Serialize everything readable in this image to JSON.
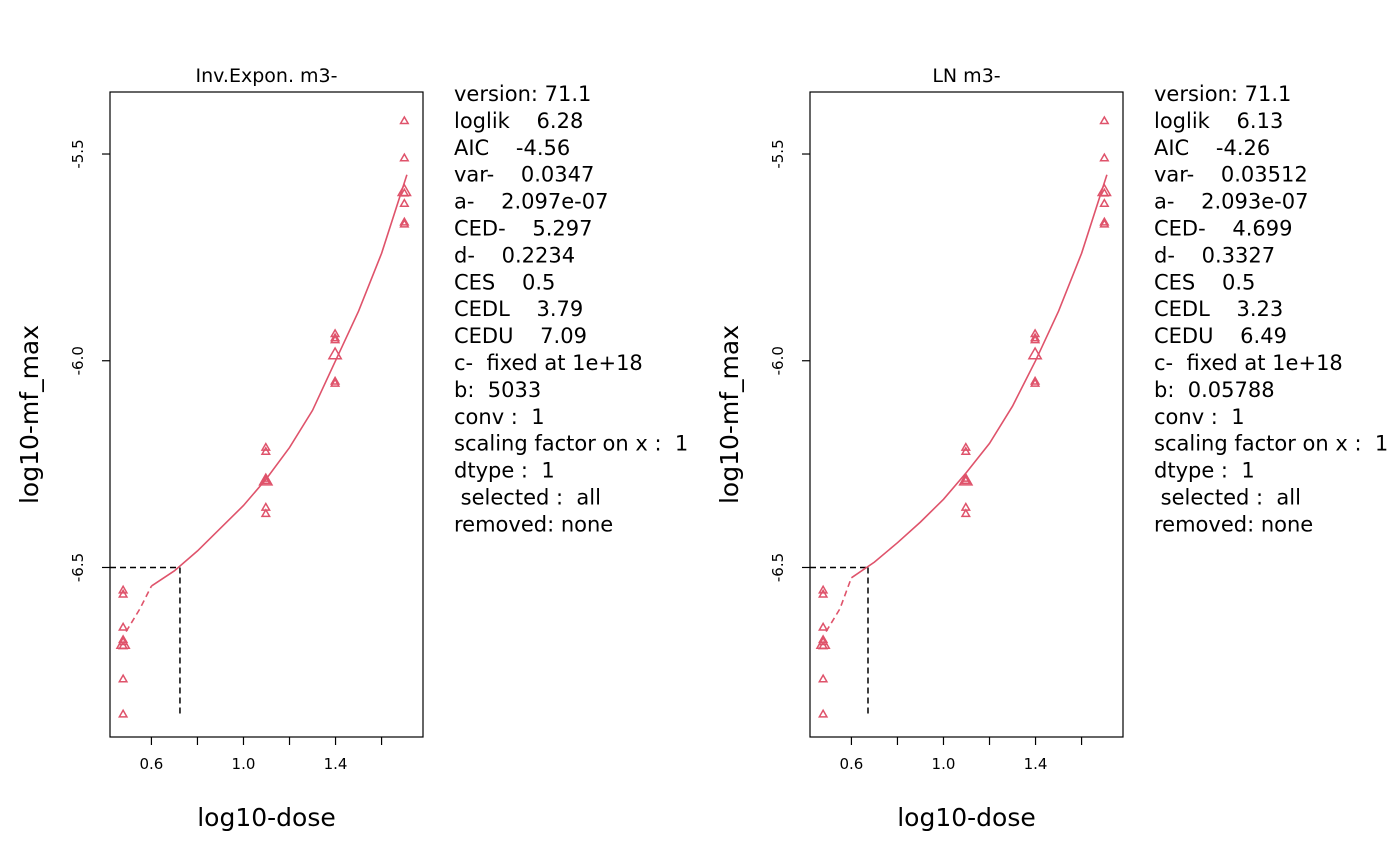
{
  "chart_data": [
    {
      "type": "scatter",
      "title": "Inv.Expon. m3-",
      "xlabel": "log10-dose",
      "ylabel": "log10-mf_max",
      "xlim": [
        0.42,
        1.78
      ],
      "ylim": [
        -6.91,
        -5.35
      ],
      "xticks": [
        0.4,
        0.6,
        0.8,
        1.0,
        1.2,
        1.4,
        1.6
      ],
      "xtick_labels": [
        "",
        "0.6",
        "",
        "1.0",
        "",
        "1.4",
        ""
      ],
      "yticks": [
        -6.5,
        -6.0,
        -5.5
      ],
      "ytick_labels": [
        "-6.5",
        "-6.0",
        "-5.5"
      ],
      "color": "#DF536B",
      "points": [
        {
          "x": 0.477,
          "y": -6.555
        },
        {
          "x": 0.477,
          "y": -6.565
        },
        {
          "x": 0.477,
          "y": -6.645
        },
        {
          "x": 0.477,
          "y": -6.675
        },
        {
          "x": 0.477,
          "y": -6.68
        },
        {
          "x": 0.477,
          "y": -6.69
        },
        {
          "x": 0.477,
          "y": -6.77
        },
        {
          "x": 0.477,
          "y": -6.855
        },
        {
          "x": 1.097,
          "y": -6.21
        },
        {
          "x": 1.097,
          "y": -6.22
        },
        {
          "x": 1.097,
          "y": -6.285
        },
        {
          "x": 1.097,
          "y": -6.29
        },
        {
          "x": 1.097,
          "y": -6.355
        },
        {
          "x": 1.097,
          "y": -6.37
        },
        {
          "x": 1.398,
          "y": -5.935
        },
        {
          "x": 1.398,
          "y": -5.945
        },
        {
          "x": 1.398,
          "y": -5.95
        },
        {
          "x": 1.398,
          "y": -6.05
        },
        {
          "x": 1.398,
          "y": -6.055
        },
        {
          "x": 1.699,
          "y": -5.42
        },
        {
          "x": 1.699,
          "y": -5.51
        },
        {
          "x": 1.699,
          "y": -5.595
        },
        {
          "x": 1.699,
          "y": -5.62
        },
        {
          "x": 1.699,
          "y": -5.665
        },
        {
          "x": 1.699,
          "y": -5.67
        }
      ],
      "group_means": [
        {
          "x": 0.477,
          "y": -6.685
        },
        {
          "x": 1.097,
          "y": -6.29
        },
        {
          "x": 1.398,
          "y": -5.985
        },
        {
          "x": 1.699,
          "y": -5.59
        }
      ],
      "fit_solid": [
        {
          "x": 0.6,
          "y": -6.545
        },
        {
          "x": 0.7,
          "y": -6.508
        },
        {
          "x": 0.8,
          "y": -6.46
        },
        {
          "x": 0.9,
          "y": -6.405
        },
        {
          "x": 1.0,
          "y": -6.35
        },
        {
          "x": 1.1,
          "y": -6.285
        },
        {
          "x": 1.2,
          "y": -6.21
        },
        {
          "x": 1.3,
          "y": -6.12
        },
        {
          "x": 1.4,
          "y": -6.0
        },
        {
          "x": 1.5,
          "y": -5.88
        },
        {
          "x": 1.6,
          "y": -5.74
        },
        {
          "x": 1.71,
          "y": -5.55
        }
      ],
      "fit_dashed": [
        {
          "x": 0.49,
          "y": -6.655
        },
        {
          "x": 0.55,
          "y": -6.6
        },
        {
          "x": 0.6,
          "y": -6.545
        }
      ],
      "ced_x": 0.724,
      "ces_y": -6.5,
      "annotations": [
        "version: 71.1",
        "loglik    6.28",
        "AIC    -4.56",
        "var-    0.0347",
        "a-    2.097e-07",
        "CED-    5.297",
        "d-    0.2234",
        "CES    0.5",
        "CEDL    3.79",
        "CEDU    7.09",
        "c-  fixed at 1e+18",
        "b:  5033",
        "conv :  1",
        "scaling factor on x :  1",
        "dtype :  1",
        " selected :  all",
        "removed: none"
      ]
    },
    {
      "type": "scatter",
      "title": "LN m3-",
      "xlabel": "log10-dose",
      "ylabel": "log10-mf_max",
      "xlim": [
        0.42,
        1.78
      ],
      "ylim": [
        -6.91,
        -5.35
      ],
      "xticks": [
        0.4,
        0.6,
        0.8,
        1.0,
        1.2,
        1.4,
        1.6
      ],
      "xtick_labels": [
        "",
        "0.6",
        "",
        "1.0",
        "",
        "1.4",
        ""
      ],
      "yticks": [
        -6.5,
        -6.0,
        -5.5
      ],
      "ytick_labels": [
        "-6.5",
        "-6.0",
        "-5.5"
      ],
      "color": "#DF536B",
      "points": [
        {
          "x": 0.477,
          "y": -6.555
        },
        {
          "x": 0.477,
          "y": -6.565
        },
        {
          "x": 0.477,
          "y": -6.645
        },
        {
          "x": 0.477,
          "y": -6.675
        },
        {
          "x": 0.477,
          "y": -6.68
        },
        {
          "x": 0.477,
          "y": -6.69
        },
        {
          "x": 0.477,
          "y": -6.77
        },
        {
          "x": 0.477,
          "y": -6.855
        },
        {
          "x": 1.097,
          "y": -6.21
        },
        {
          "x": 1.097,
          "y": -6.22
        },
        {
          "x": 1.097,
          "y": -6.285
        },
        {
          "x": 1.097,
          "y": -6.29
        },
        {
          "x": 1.097,
          "y": -6.355
        },
        {
          "x": 1.097,
          "y": -6.37
        },
        {
          "x": 1.398,
          "y": -5.935
        },
        {
          "x": 1.398,
          "y": -5.945
        },
        {
          "x": 1.398,
          "y": -5.95
        },
        {
          "x": 1.398,
          "y": -6.05
        },
        {
          "x": 1.398,
          "y": -6.055
        },
        {
          "x": 1.699,
          "y": -5.42
        },
        {
          "x": 1.699,
          "y": -5.51
        },
        {
          "x": 1.699,
          "y": -5.595
        },
        {
          "x": 1.699,
          "y": -5.62
        },
        {
          "x": 1.699,
          "y": -5.665
        },
        {
          "x": 1.699,
          "y": -5.67
        }
      ],
      "group_means": [
        {
          "x": 0.477,
          "y": -6.685
        },
        {
          "x": 1.097,
          "y": -6.29
        },
        {
          "x": 1.398,
          "y": -5.985
        },
        {
          "x": 1.699,
          "y": -5.59
        }
      ],
      "fit_solid": [
        {
          "x": 0.6,
          "y": -6.525
        },
        {
          "x": 0.7,
          "y": -6.487
        },
        {
          "x": 0.8,
          "y": -6.44
        },
        {
          "x": 0.9,
          "y": -6.39
        },
        {
          "x": 1.0,
          "y": -6.335
        },
        {
          "x": 1.1,
          "y": -6.27
        },
        {
          "x": 1.2,
          "y": -6.2
        },
        {
          "x": 1.3,
          "y": -6.11
        },
        {
          "x": 1.4,
          "y": -6.0
        },
        {
          "x": 1.5,
          "y": -5.88
        },
        {
          "x": 1.6,
          "y": -5.74
        },
        {
          "x": 1.71,
          "y": -5.55
        }
      ],
      "fit_dashed": [
        {
          "x": 0.49,
          "y": -6.655
        },
        {
          "x": 0.55,
          "y": -6.6
        },
        {
          "x": 0.6,
          "y": -6.525
        }
      ],
      "ced_x": 0.672,
      "ces_y": -6.5,
      "annotations": [
        "version: 71.1",
        "loglik    6.13",
        "AIC    -4.26",
        "var-    0.03512",
        "a-    2.093e-07",
        "CED-    4.699",
        "d-    0.3327",
        "CES    0.5",
        "CEDL    3.23",
        "CEDU    6.49",
        "c-  fixed at 1e+18",
        "b:  0.05788",
        "conv :  1",
        "scaling factor on x :  1",
        "dtype :  1",
        " selected :  all",
        "removed: none"
      ]
    }
  ]
}
